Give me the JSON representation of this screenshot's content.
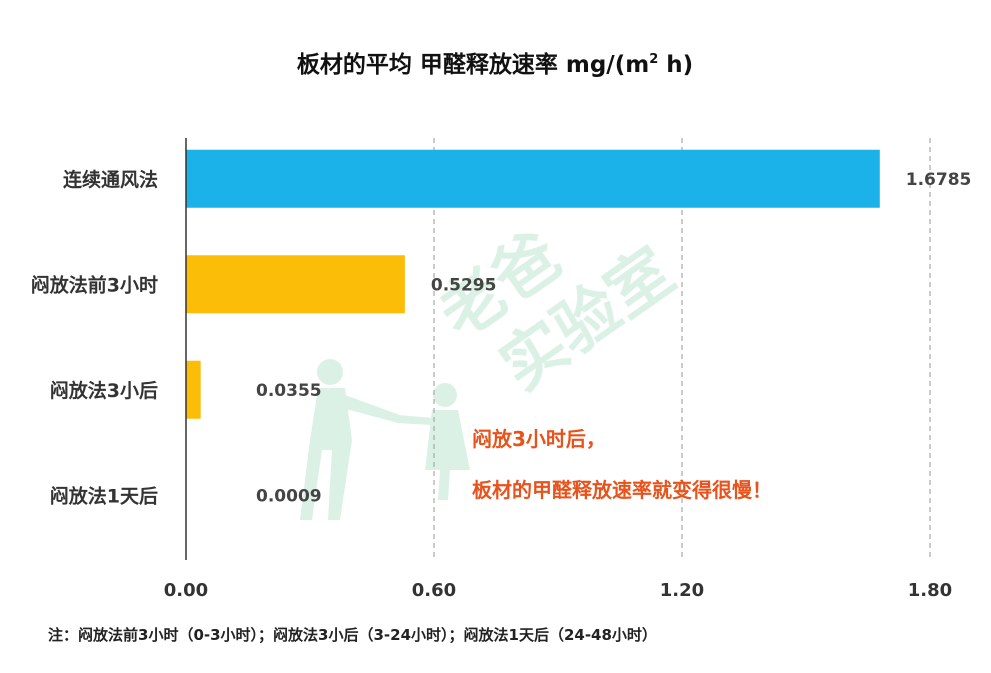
{
  "chart_data": {
    "type": "bar",
    "orientation": "horizontal",
    "title": "板材的平均 甲醛释放速率 mg/(m",
    "title_sup": "2",
    "title_tail": " h)",
    "categories": [
      "连续通风法",
      "闷放法前3小时",
      "闷放法3小后",
      "闷放法1天后"
    ],
    "values": [
      1.6785,
      0.5295,
      0.0355,
      0.0009
    ],
    "value_labels": [
      "1.6785",
      "0.5295",
      "0.0355",
      "0.0009"
    ],
    "bar_colors": [
      "#1ab2e8",
      "#fbbd08",
      "#fbbd08",
      "#fbbd08"
    ],
    "xlim": [
      0,
      1.8
    ],
    "xticks": [
      0,
      0.6,
      1.2,
      1.8
    ],
    "xtick_labels": [
      "0.00",
      "0.60",
      "1.20",
      "1.80"
    ],
    "grid": "vertical dashed",
    "annotation": [
      "闷放3小时后，",
      "板材的甲醛释放速率就变得很慢！"
    ],
    "annotation_color": "#e8531c",
    "footnote": "注：闷放法前3小时（0-3小时）；闷放法3小后（3-24小时）；闷放法1天后（24-48小时）"
  },
  "watermark": {
    "line1": "老爸",
    "line2": "实验室",
    "color": "#d9f0e4"
  }
}
